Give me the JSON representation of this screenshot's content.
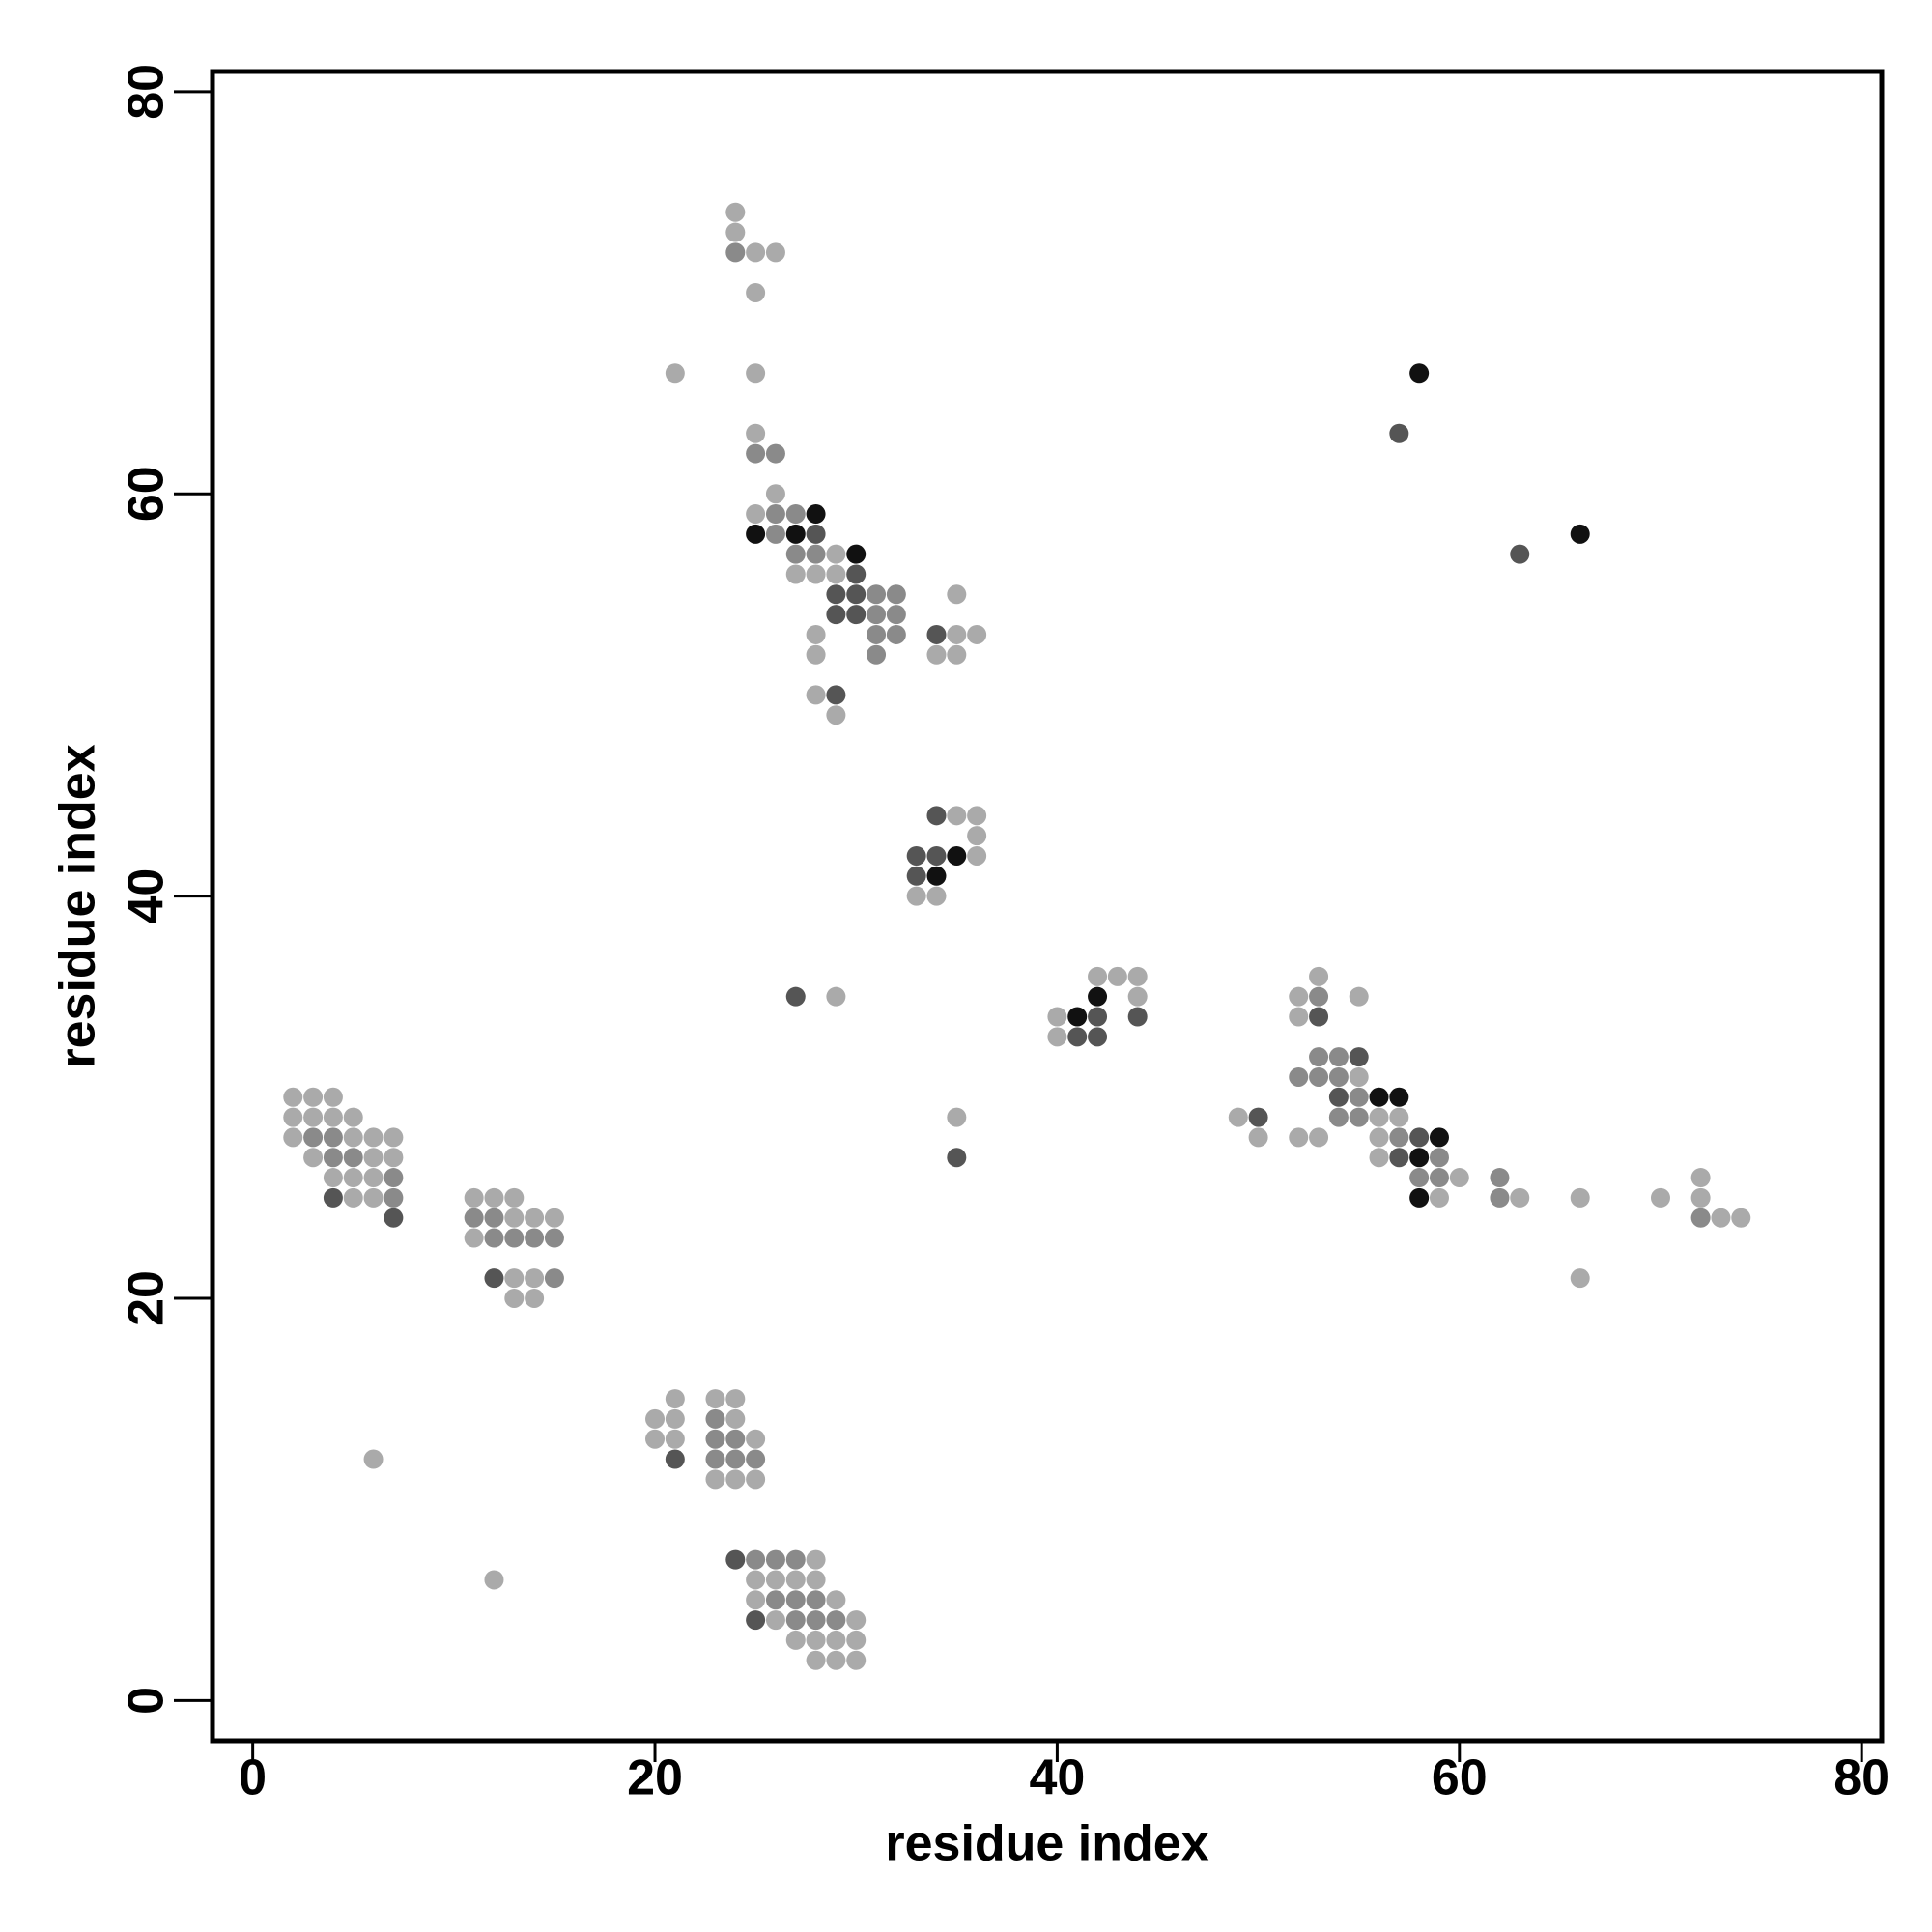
{
  "chart_data": {
    "type": "scatter",
    "xlabel": "residue index",
    "ylabel": "residue index",
    "xlim": [
      -2,
      81
    ],
    "ylim": [
      -2,
      81
    ],
    "xticks": [
      0,
      20,
      40,
      60,
      80
    ],
    "yticks": [
      0,
      20,
      40,
      60,
      80
    ],
    "series": [
      {
        "color": "#aaaaaa",
        "x": [
          2,
          3,
          4,
          2,
          3,
          4,
          5,
          2,
          5,
          6,
          7,
          3,
          6,
          7,
          4,
          5,
          6,
          5,
          6,
          11,
          12,
          13,
          13,
          14,
          15,
          11,
          13,
          14,
          13,
          14,
          6,
          12,
          21,
          23,
          24,
          20,
          21,
          24,
          20,
          21,
          25,
          23,
          24,
          25,
          28,
          25,
          26,
          27,
          28,
          25,
          29,
          26,
          30,
          27,
          28,
          29,
          30,
          28,
          29,
          30,
          24,
          24,
          25,
          26,
          25,
          21,
          25,
          25,
          26,
          25,
          29,
          27,
          28,
          29,
          35,
          28,
          35,
          36,
          28,
          34,
          35,
          28,
          29,
          35,
          36,
          36,
          36,
          33,
          34,
          29,
          35,
          42,
          43,
          44,
          44,
          40,
          40,
          53,
          52,
          55,
          52,
          55,
          49,
          56,
          57,
          50,
          52,
          53,
          56,
          56,
          60,
          59,
          63,
          66,
          70,
          72,
          73,
          74,
          72,
          66
        ],
        "y": [
          30,
          30,
          30,
          29,
          29,
          29,
          29,
          28,
          28,
          28,
          28,
          27,
          27,
          27,
          26,
          26,
          26,
          25,
          25,
          25,
          25,
          25,
          24,
          24,
          24,
          23,
          21,
          21,
          20,
          20,
          12,
          6,
          15,
          15,
          15,
          14,
          14,
          14,
          13,
          13,
          13,
          11,
          11,
          11,
          7,
          6,
          6,
          6,
          6,
          5,
          5,
          4,
          4,
          3,
          3,
          3,
          3,
          2,
          2,
          2,
          74,
          73,
          72,
          72,
          70,
          66,
          66,
          63,
          60,
          59,
          57,
          56,
          56,
          56,
          55,
          53,
          53,
          53,
          52,
          52,
          52,
          50,
          49,
          44,
          44,
          43,
          42,
          40,
          40,
          35,
          29,
          36,
          36,
          36,
          35,
          34,
          33,
          36,
          35,
          35,
          34,
          31,
          29,
          29,
          29,
          28,
          28,
          28,
          28,
          27,
          26,
          25,
          25,
          25,
          25,
          25,
          24,
          24,
          26,
          21
        ]
      },
      {
        "color": "#8a8a8a",
        "x": [
          3,
          4,
          4,
          5,
          7,
          7,
          11,
          12,
          12,
          13,
          14,
          15,
          15,
          23,
          23,
          24,
          23,
          24,
          25,
          25,
          26,
          27,
          26,
          27,
          28,
          27,
          28,
          29,
          24,
          25,
          26,
          26,
          27,
          26,
          27,
          28,
          31,
          32,
          31,
          32,
          31,
          32,
          31,
          53,
          53,
          54,
          52,
          53,
          54,
          55,
          54,
          55,
          57,
          59,
          58,
          59,
          62,
          62,
          72
        ],
        "y": [
          28,
          28,
          27,
          27,
          26,
          25,
          24,
          24,
          23,
          23,
          23,
          23,
          21,
          14,
          13,
          13,
          12,
          12,
          12,
          7,
          7,
          7,
          5,
          5,
          5,
          4,
          4,
          4,
          72,
          62,
          62,
          59,
          59,
          58,
          57,
          57,
          55,
          55,
          54,
          54,
          53,
          53,
          52,
          35,
          32,
          32,
          31,
          31,
          31,
          30,
          29,
          29,
          28,
          27,
          26,
          26,
          26,
          25,
          24
        ]
      },
      {
        "color": "#555555",
        "x": [
          4,
          7,
          12,
          21,
          24,
          25,
          28,
          30,
          29,
          30,
          29,
          30,
          34,
          29,
          34,
          33,
          34,
          33,
          27,
          35,
          42,
          44,
          41,
          42,
          53,
          55,
          54,
          50,
          58,
          57,
          57,
          63
        ],
        "y": [
          25,
          24,
          21,
          12,
          7,
          4,
          58,
          56,
          55,
          55,
          54,
          54,
          53,
          50,
          44,
          42,
          42,
          41,
          35,
          27,
          34,
          34,
          33,
          33,
          34,
          32,
          30,
          29,
          28,
          27,
          63,
          57
        ]
      },
      {
        "color": "#111111",
        "x": [
          28,
          25,
          27,
          30,
          35,
          34,
          42,
          41,
          56,
          57,
          59,
          58,
          58,
          58,
          66
        ],
        "y": [
          59,
          58,
          58,
          57,
          42,
          41,
          35,
          34,
          30,
          30,
          28,
          27,
          25,
          66,
          58
        ]
      }
    ]
  }
}
